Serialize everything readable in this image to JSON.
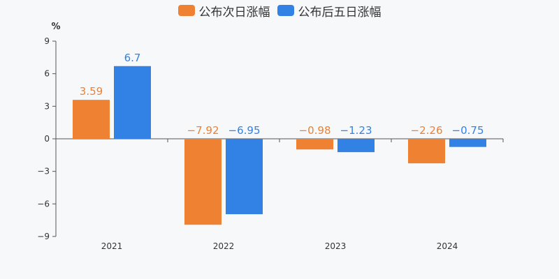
{
  "chart_data": {
    "type": "bar",
    "title": "",
    "unit_label": "%",
    "categories": [
      "2021",
      "2022",
      "2023",
      "2024"
    ],
    "series": [
      {
        "name": "公布次日涨幅",
        "color": "#ef8133",
        "values": [
          3.59,
          -7.92,
          -0.98,
          -2.26
        ],
        "labels": [
          "3.59",
          "−7.92",
          "−0.98",
          "−2.26"
        ]
      },
      {
        "name": "公布后五日涨幅",
        "color": "#3282e6",
        "values": [
          6.7,
          -6.95,
          -1.23,
          -0.75
        ],
        "labels": [
          "6.7",
          "−6.95",
          "−1.23",
          "−0.75"
        ]
      }
    ],
    "ylim": [
      -9,
      9
    ],
    "yticks": [
      9,
      6,
      3,
      0,
      -3,
      -6,
      -9
    ],
    "ytick_labels": [
      "9",
      "6",
      "3",
      "0",
      "−3",
      "−6",
      "−9"
    ],
    "legend_position": "top-center",
    "grid": false
  }
}
